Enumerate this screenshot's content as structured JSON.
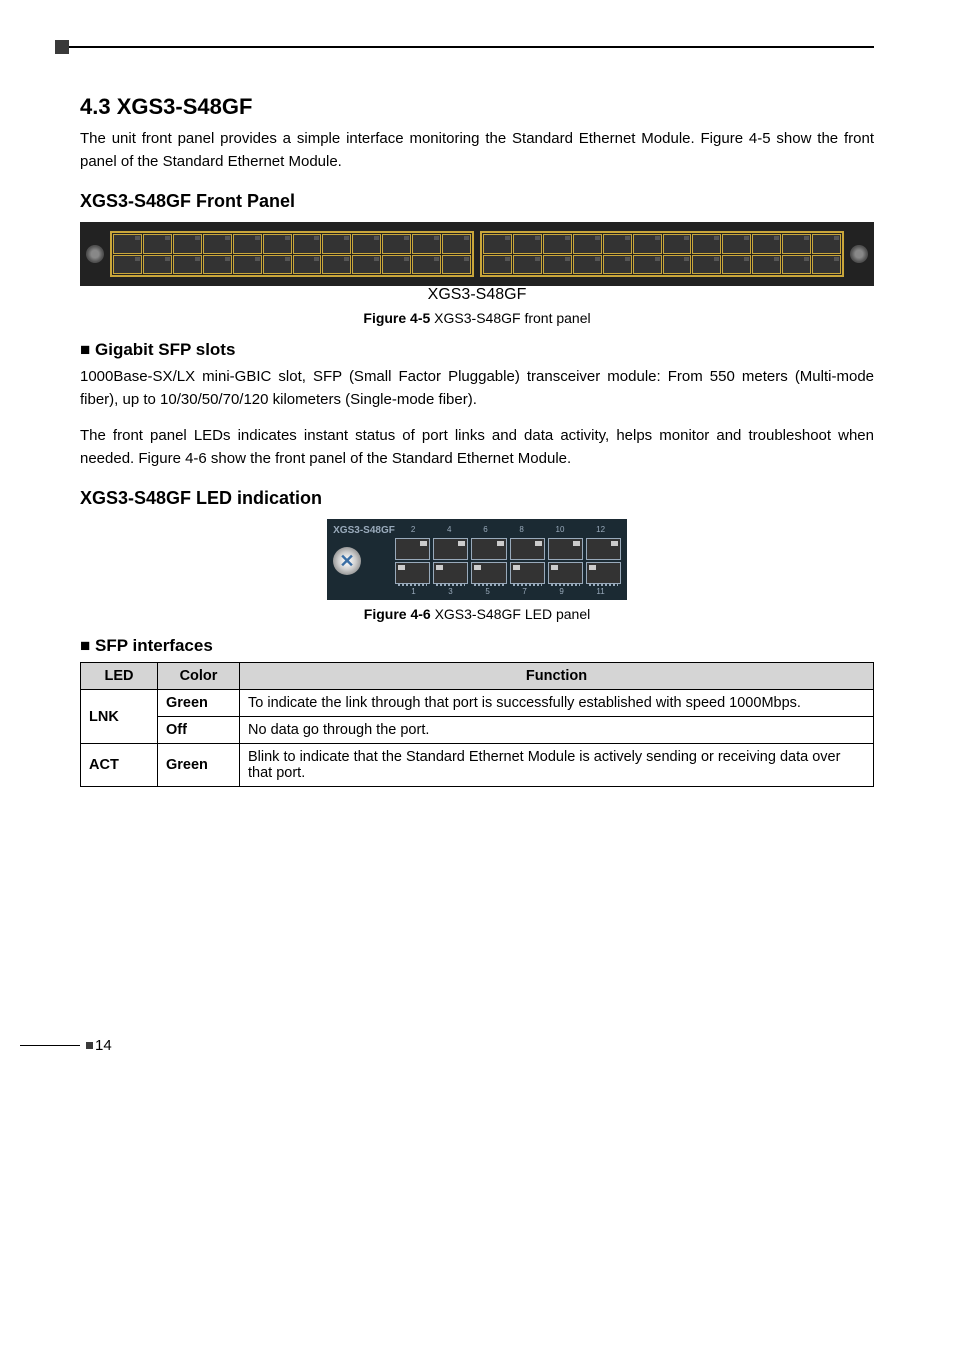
{
  "section": {
    "title": "4.3 XGS3-S48GF",
    "intro": "The unit front panel provides a simple interface monitoring the Standard Ethernet Module. Figure 4-5 show the front panel of the Standard Ethernet Module."
  },
  "front_panel": {
    "heading": "XGS3-S48GF Front Panel",
    "device_label": "XGS3-S48GF",
    "caption_bold": "Figure 4-5",
    "caption_rest": "  XGS3-S48GF front panel",
    "port_pairs_per_block": 12,
    "top_numbers": [
      "2",
      "4",
      "6",
      "8",
      "10",
      "12",
      "14",
      "16",
      "18",
      "20",
      "22",
      "24",
      "26",
      "28",
      "30",
      "32",
      "34",
      "36",
      "38",
      "40",
      "42",
      "44",
      "46",
      "48"
    ],
    "bottom_numbers": [
      "1",
      "3",
      "5",
      "7",
      "9",
      "11",
      "13",
      "15",
      "17",
      "19",
      "21",
      "23",
      "25",
      "27",
      "29",
      "31",
      "33",
      "35",
      "37",
      "39",
      "41",
      "43",
      "45",
      "47"
    ],
    "colors": {
      "bg": "#222222",
      "border": "#c9a63b"
    }
  },
  "gigabit": {
    "heading": "■ Gigabit SFP slots",
    "p1": "1000Base-SX/LX mini-GBIC slot, SFP (Small Factor Pluggable) transceiver module: From 550 meters (Multi-mode fiber), up to 10/30/50/70/120 kilometers (Single-mode fiber).",
    "p2": "The front panel LEDs indicates instant status of port links and data activity, helps monitor and troubleshoot when needed. Figure 4-6 show the front panel of the Standard Ethernet Module."
  },
  "led_panel": {
    "heading": "XGS3-S48GF LED indication",
    "device_label": "XGS3-S48GF",
    "top_numbers": [
      "2",
      "4",
      "6",
      "8",
      "10",
      "12"
    ],
    "bottom_numbers": [
      "1",
      "3",
      "5",
      "7",
      "9",
      "11"
    ],
    "caption_bold": "Figure 4-6",
    "caption_rest": "  XGS3-S48GF LED panel",
    "colors": {
      "bg": "#1b2a33",
      "text": "#99aabb"
    }
  },
  "sfp_table": {
    "heading": "■ SFP interfaces",
    "header_bg": "#d5d5d5",
    "columns": [
      "LED",
      "Color",
      "Function"
    ],
    "rows": [
      {
        "led": "LNK",
        "color": "Green",
        "func": "To indicate the link through that port is successfully established with speed 1000Mbps.",
        "rowspan": 2
      },
      {
        "led": "",
        "color": "Off",
        "func": "No data go through the port."
      },
      {
        "led": "ACT",
        "color": "Green",
        "func": "Blink to indicate that the Standard Ethernet Module is actively sending or receiving data over that port."
      }
    ]
  },
  "page_number": "14"
}
